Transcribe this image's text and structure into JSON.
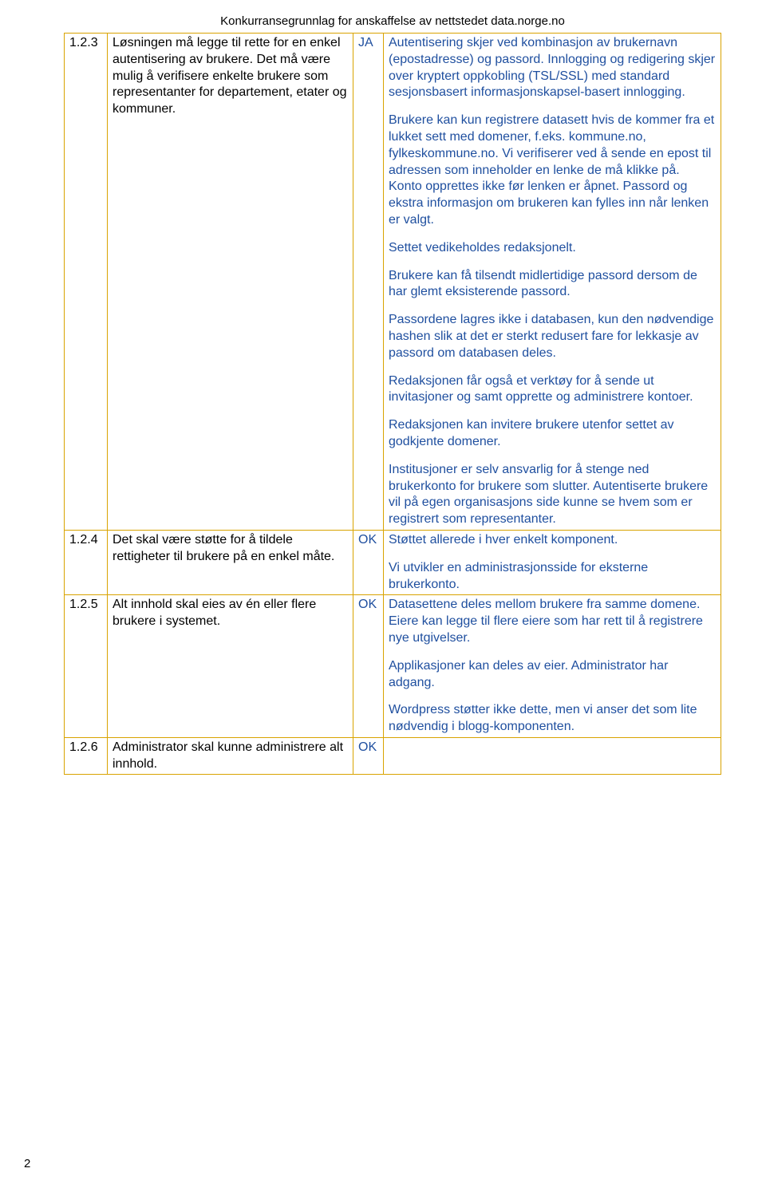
{
  "header": "Konkurransegrunnlag for anskaffelse av nettstedet data.norge.no",
  "pageNumber": "2",
  "colors": {
    "border": "#d9a300",
    "response_text": "#1f4f9f",
    "requirement_text": "#000000",
    "background": "#ffffff"
  },
  "rows": [
    {
      "num": "1.2.3",
      "requirement": "Løsningen må legge til rette for en enkel autentisering av brukere. Det må være mulig å verifisere enkelte brukere som representanter for departement, etater og kommuner.",
      "status": "JA",
      "response": [
        "Autentisering skjer ved kombinasjon av brukernavn (epostadresse) og passord. Innlogging og redigering skjer over kryptert oppkobling (TSL/SSL) med standard sesjonsbasert informasjonskapsel-basert innlogging.",
        "Brukere kan kun registrere datasett hvis de kommer fra et lukket sett med domener, f.eks. kommune.no, fylkeskommune.no. Vi verifiserer ved å sende en epost til adressen som inneholder en lenke de må klikke på. Konto opprettes ikke før lenken er åpnet. Passord og ekstra informasjon om brukeren kan fylles inn når lenken er valgt.",
        "Settet vedikeholdes redaksjonelt.",
        "Brukere kan få tilsendt midlertidige passord dersom de har glemt eksisterende passord.",
        "Passordene lagres ikke i databasen, kun den nødvendige hashen slik at det er sterkt redusert fare for lekkasje av passord om databasen deles.",
        "Redaksjonen får også et verktøy for å sende ut invitasjoner og samt opprette og administrere kontoer.",
        "Redaksjonen kan invitere brukere utenfor settet av godkjente domener.",
        "Institusjoner er selv ansvarlig for å stenge ned brukerkonto for brukere som slutter. Autentiserte brukere vil på egen organisasjons side kunne se hvem som er registrert som representanter."
      ]
    },
    {
      "num": "1.2.4",
      "requirement": "Det skal være støtte for å tildele rettigheter til brukere på en enkel måte.",
      "status": "OK",
      "response": [
        "Støttet allerede i hver enkelt komponent.",
        "Vi utvikler en administrasjonsside for eksterne brukerkonto."
      ]
    },
    {
      "num": "1.2.5",
      "requirement": "Alt innhold skal eies av én eller flere brukere i systemet.",
      "status": "OK",
      "response": [
        "Datasettene deles mellom brukere fra samme domene. Eiere kan legge til flere eiere som har rett til å registrere nye utgivelser.",
        "Applikasjoner kan deles av eier. Administrator har adgang.",
        "Wordpress støtter ikke dette, men vi anser det som lite nødvendig i blogg-komponenten."
      ]
    },
    {
      "num": "1.2.6",
      "requirement": "Administrator skal kunne administrere alt innhold.",
      "status": "OK",
      "response": []
    }
  ]
}
